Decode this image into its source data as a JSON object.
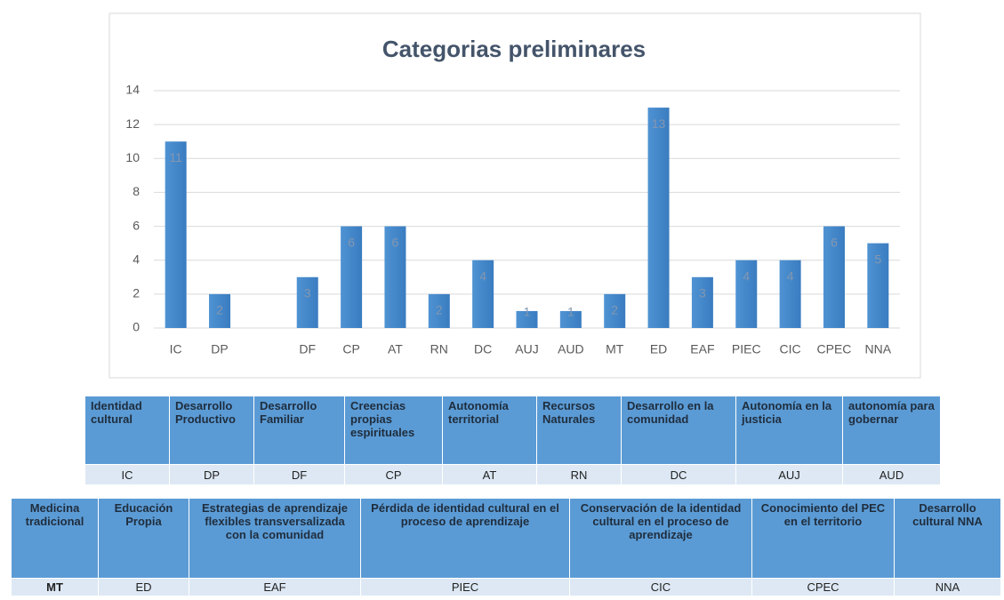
{
  "chart_data": {
    "type": "bar",
    "title": "Categorias preliminares",
    "categories": [
      "IC",
      "DP",
      null,
      "DF",
      "CP",
      "AT",
      "RN",
      "DC",
      "AUJ",
      "AUD",
      "MT",
      "ED",
      "EAF",
      "PIEC",
      "CIC",
      "CPEC",
      "NNA"
    ],
    "values": [
      11,
      2,
      null,
      3,
      6,
      6,
      2,
      4,
      1,
      1,
      2,
      13,
      3,
      4,
      4,
      6,
      5
    ],
    "color": "#4a8fd0",
    "ylim": [
      0,
      14
    ],
    "yticks": [
      0,
      2,
      4,
      6,
      8,
      10,
      12,
      14
    ],
    "grid": true
  },
  "tables": [
    {
      "headers": [
        "Identidad cultural",
        "Desarrollo Productivo",
        "Desarrollo Familiar",
        "Creencias propias espirituales",
        "Autonomía territorial",
        "Recursos Naturales",
        "Desarrollo en la comunidad",
        "Autonomía en la justicia",
        "autonomía para gobernar"
      ],
      "codes": [
        "IC",
        "DP",
        "DF",
        "CP",
        "AT",
        "RN",
        "DC",
        "AUJ",
        "AUD"
      ]
    },
    {
      "headers": [
        "Medicina tradicional",
        "Educación Propia",
        "Estrategias de aprendizaje flexibles transversalizada con la comunidad",
        "Pérdida de identidad cultural en el proceso de aprendizaje",
        "Conservación de la identidad cultural en el proceso de aprendizaje",
        "Conocimiento del PEC en el territorio",
        "Desarrollo cultural NNA"
      ],
      "codes": [
        "MT",
        "ED",
        "EAF",
        "PIEC",
        "CIC",
        "CPEC",
        "NNA"
      ]
    }
  ]
}
